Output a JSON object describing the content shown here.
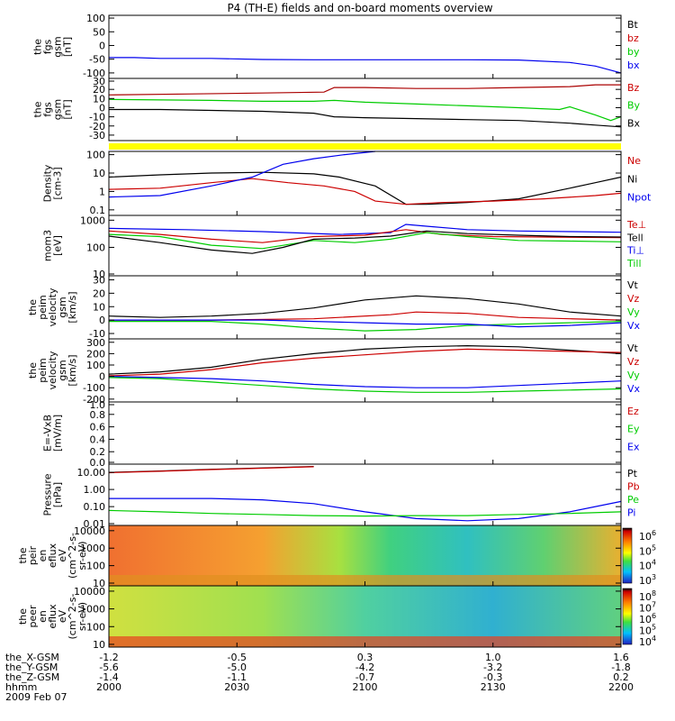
{
  "title": "P4 (TH-E) fields and on-board moments overview",
  "chart_data": {
    "type": "line",
    "title": "P4 (TH-E) fields and on-board moments overview",
    "time_axis": {
      "ticks": [
        "2000",
        "2030",
        "2100",
        "2130",
        "2200"
      ]
    },
    "position_rows": [
      {
        "label": "the_X-GSM",
        "values": [
          "-1.2",
          "-0.5",
          "0.3",
          "1.0",
          "1.6"
        ]
      },
      {
        "label": "the_Y-GSM",
        "values": [
          "-5.6",
          "-5.0",
          "-4.2",
          "-3.2",
          "-1.8"
        ]
      },
      {
        "label": "the_Z-GSM",
        "values": [
          "-1.4",
          "-1.1",
          "-0.7",
          "-0.3",
          "0.2"
        ]
      },
      {
        "label": "hhmm",
        "values": [
          "2000",
          "2030",
          "2100",
          "2130",
          "2200"
        ]
      }
    ],
    "date": "2009 Feb 07",
    "panels": [
      {
        "ylabel": [
          "the",
          "fgs",
          "gsm",
          "[nT]"
        ],
        "yticks": [
          "100",
          "50",
          "0",
          "-50",
          "-100"
        ],
        "ylim": [
          -120,
          110
        ],
        "log": false,
        "legend": [
          {
            "name": "Bt",
            "color": "#000000"
          },
          {
            "name": "bz",
            "color": "#cc0000"
          },
          {
            "name": "by",
            "color": "#00cc00"
          },
          {
            "name": "bx",
            "color": "#0000ee"
          }
        ],
        "series": [
          {
            "name": "bx",
            "color": "#0000ee",
            "x": [
              0,
              5,
              10,
              20,
              30,
              40,
              50,
              60,
              70,
              80,
              90,
              95,
              100
            ],
            "y": [
              -44,
              -44,
              -47,
              -47,
              -51,
              -52,
              -52,
              -52,
              -52,
              -53,
              -62,
              -75,
              -100
            ]
          }
        ]
      },
      {
        "ylabel": [
          "the",
          "fgs",
          "gsm",
          "[nT]"
        ],
        "yticks": [
          "30",
          "20",
          "10",
          "0",
          "-10",
          "-20",
          "-30"
        ],
        "ylim": [
          -36,
          32
        ],
        "log": false,
        "legend": [
          {
            "name": "Bz",
            "color": "#cc0000"
          },
          {
            "name": "By",
            "color": "#00cc00"
          },
          {
            "name": "Bx",
            "color": "#000000"
          }
        ],
        "series": [
          {
            "name": "Bz",
            "color": "#aa0000",
            "x": [
              0,
              15,
              30,
              42,
              44,
              50,
              60,
              70,
              80,
              90,
              95,
              100
            ],
            "y": [
              14,
              15,
              16,
              17,
              22,
              22,
              21,
              21,
              22,
              23,
              25,
              25
            ]
          },
          {
            "name": "By",
            "color": "#00cc00",
            "x": [
              0,
              20,
              30,
              40,
              44,
              50,
              60,
              70,
              80,
              88,
              90,
              95,
              98,
              100
            ],
            "y": [
              9,
              8,
              7,
              7,
              8,
              6,
              4,
              2,
              0,
              -2,
              1,
              -8,
              -14,
              -10
            ]
          },
          {
            "name": "Bx",
            "color": "#000000",
            "x": [
              0,
              10,
              20,
              30,
              40,
              44,
              50,
              60,
              70,
              80,
              90,
              95,
              100
            ],
            "y": [
              -2,
              -2,
              -3,
              -4,
              -6,
              -10,
              -11,
              -12,
              -13,
              -14,
              -17,
              -19,
              -21
            ]
          }
        ]
      },
      {
        "ylabel": [
          "Density",
          "[cm-3]"
        ],
        "yticks": [
          "100",
          "10",
          "1",
          "0.1"
        ],
        "ylim": [
          0.05,
          150
        ],
        "log": true,
        "legend": [
          {
            "name": "Ne",
            "color": "#cc0000"
          },
          {
            "name": "Ni",
            "color": "#000000"
          },
          {
            "name": "Npot",
            "color": "#0000ee"
          }
        ],
        "series": [
          {
            "name": "Ni",
            "color": "#000000",
            "x": [
              0,
              10,
              20,
              30,
              40,
              45,
              52,
              58,
              62,
              70,
              80,
              90,
              95,
              100
            ],
            "y": [
              6,
              8,
              10,
              11,
              9,
              6,
              2,
              0.2,
              0.2,
              0.25,
              0.4,
              1.5,
              3,
              6
            ]
          },
          {
            "name": "Ne",
            "color": "#cc0000",
            "x": [
              0,
              10,
              20,
              28,
              35,
              42,
              48,
              52,
              58,
              65,
              75,
              85,
              95,
              100
            ],
            "y": [
              1.3,
              1.5,
              3,
              5,
              3,
              2,
              1,
              0.3,
              0.2,
              0.25,
              0.3,
              0.4,
              0.6,
              0.8
            ]
          },
          {
            "name": "Npot",
            "color": "#0000ee",
            "x": [
              0,
              10,
              20,
              28,
              34,
              40,
              46,
              52
            ],
            "y": [
              0.5,
              0.6,
              2,
              6,
              30,
              60,
              100,
              150
            ]
          }
        ]
      },
      {
        "ylabel": [
          "mom3",
          "[eV]"
        ],
        "yticks": [
          "1000",
          "100",
          "10"
        ],
        "ylim": [
          9,
          1500
        ],
        "log": true,
        "legend": [
          {
            "name": "Te⊥",
            "color": "#cc0000"
          },
          {
            "name": "Tell",
            "color": "#000000"
          },
          {
            "name": "Ti⊥",
            "color": "#0000ee"
          },
          {
            "name": "Till",
            "color": "#00cc00"
          }
        ],
        "series": [
          {
            "name": "Ti⊥",
            "color": "#0000ee",
            "x": [
              0,
              15,
              30,
              45,
              55,
              58,
              62,
              70,
              80,
              90,
              100
            ],
            "y": [
              500,
              450,
              380,
              300,
              350,
              700,
              600,
              450,
              400,
              380,
              360
            ]
          },
          {
            "name": "Te⊥",
            "color": "#cc0000",
            "x": [
              0,
              10,
              20,
              30,
              40,
              50,
              58,
              65,
              75,
              85,
              100
            ],
            "y": [
              400,
              300,
              200,
              150,
              250,
              280,
              450,
              300,
              250,
              240,
              230
            ]
          },
          {
            "name": "Till",
            "color": "#00cc00",
            "x": [
              0,
              10,
              20,
              30,
              40,
              48,
              55,
              62,
              70,
              80,
              90,
              100
            ],
            "y": [
              300,
              250,
              120,
              90,
              180,
              150,
              200,
              350,
              250,
              180,
              170,
              160
            ]
          },
          {
            "name": "Tell",
            "color": "#000000",
            "x": [
              0,
              10,
              20,
              28,
              34,
              40,
              48,
              55,
              62,
              70,
              80,
              90,
              100
            ],
            "y": [
              260,
              150,
              80,
              60,
              100,
              200,
              220,
              260,
              400,
              320,
              280,
              250,
              240
            ]
          }
        ]
      },
      {
        "ylabel": [
          "the",
          "peim",
          "velocity",
          "gsm",
          "[km/s]"
        ],
        "yticks": [
          "30",
          "20",
          "10",
          "0",
          "-10"
        ],
        "ylim": [
          -14,
          33
        ],
        "log": false,
        "legend": [
          {
            "name": "Vt",
            "color": "#000000"
          },
          {
            "name": "Vz",
            "color": "#cc0000"
          },
          {
            "name": "Vy",
            "color": "#00cc00"
          },
          {
            "name": "Vx",
            "color": "#0000ee"
          }
        ],
        "series": [
          {
            "name": "Vt",
            "color": "#000000",
            "x": [
              0,
              10,
              20,
              30,
              40,
              50,
              60,
              70,
              80,
              90,
              100
            ],
            "y": [
              3,
              2,
              3,
              5,
              9,
              15,
              18,
              16,
              12,
              6,
              3
            ]
          },
          {
            "name": "Vz",
            "color": "#cc0000",
            "x": [
              0,
              20,
              40,
              55,
              60,
              70,
              80,
              90,
              100
            ],
            "y": [
              0,
              0,
              1,
              4,
              6,
              5,
              2,
              1,
              0
            ]
          },
          {
            "name": "Vy",
            "color": "#00cc00",
            "x": [
              0,
              20,
              30,
              40,
              50,
              60,
              70,
              80,
              90,
              100
            ],
            "y": [
              -1,
              -1,
              -3,
              -6,
              -8,
              -7,
              -4,
              -3,
              -2,
              -1
            ]
          },
          {
            "name": "Vx",
            "color": "#0000ee",
            "x": [
              0,
              30,
              50,
              60,
              70,
              80,
              90,
              100
            ],
            "y": [
              0,
              0,
              -2,
              -3,
              -3,
              -5,
              -4,
              -2
            ]
          }
        ]
      },
      {
        "ylabel": [
          "the",
          "peim",
          "velocity",
          "gsm",
          "[km/s]"
        ],
        "yticks": [
          "300",
          "200",
          "100",
          "0",
          "-100",
          "-200"
        ],
        "ylim": [
          -225,
          330
        ],
        "log": false,
        "legend": [
          {
            "name": "Vt",
            "color": "#000000"
          },
          {
            "name": "Vz",
            "color": "#cc0000"
          },
          {
            "name": "Vy",
            "color": "#00cc00"
          },
          {
            "name": "Vx",
            "color": "#0000ee"
          }
        ],
        "series": [
          {
            "name": "Vt",
            "color": "#000000",
            "x": [
              0,
              10,
              20,
              30,
              40,
              50,
              60,
              70,
              80,
              90,
              100
            ],
            "y": [
              20,
              40,
              80,
              150,
              200,
              240,
              260,
              270,
              260,
              230,
              200
            ]
          },
          {
            "name": "Vz",
            "color": "#cc0000",
            "x": [
              0,
              10,
              20,
              30,
              40,
              50,
              60,
              70,
              80,
              90,
              100
            ],
            "y": [
              5,
              20,
              60,
              120,
              160,
              190,
              220,
              240,
              230,
              220,
              210
            ]
          },
          {
            "name": "Vy",
            "color": "#00cc00",
            "x": [
              0,
              10,
              20,
              30,
              40,
              50,
              60,
              70,
              80,
              90,
              100
            ],
            "y": [
              -10,
              -20,
              -50,
              -80,
              -110,
              -130,
              -140,
              -140,
              -130,
              -120,
              -110
            ]
          },
          {
            "name": "Vx",
            "color": "#0000ee",
            "x": [
              0,
              10,
              20,
              30,
              40,
              50,
              60,
              70,
              80,
              90,
              100
            ],
            "y": [
              0,
              -10,
              -20,
              -40,
              -70,
              -90,
              -100,
              -100,
              -80,
              -60,
              -40
            ]
          }
        ]
      },
      {
        "ylabel": [
          "E=-VxB",
          "[mV/m]"
        ],
        "yticks": [
          "1.0",
          "0.8",
          "0.6",
          "0.4",
          "0.2",
          "0.0"
        ],
        "ylim": [
          0,
          1
        ],
        "log": false,
        "legend": [
          {
            "name": "Ez",
            "color": "#cc0000"
          },
          {
            "name": "Ey",
            "color": "#00cc00"
          },
          {
            "name": "Ex",
            "color": "#0000ee"
          }
        ],
        "series": []
      },
      {
        "ylabel": [
          "Pressure",
          "[nPa]"
        ],
        "yticks": [
          "10.00",
          "1.00",
          "0.10",
          "0.01"
        ],
        "ylim": [
          0.008,
          30
        ],
        "log": true,
        "legend": [
          {
            "name": "Pt",
            "color": "#000000"
          },
          {
            "name": "Pb",
            "color": "#cc0000"
          },
          {
            "name": "Pe",
            "color": "#00cc00"
          },
          {
            "name": "Pi",
            "color": "#0000ee"
          }
        ],
        "series": [
          {
            "name": "Pt",
            "color": "#000000",
            "x": [
              0,
              10,
              20,
              30,
              40
            ],
            "y": [
              10,
              12,
              15,
              18,
              22
            ]
          },
          {
            "name": "Pb",
            "color": "#cc0000",
            "x": [
              0,
              10,
              20,
              30,
              40
            ],
            "y": [
              9.5,
              11.5,
              14.5,
              17.5,
              21
            ]
          },
          {
            "name": "Pi",
            "color": "#0000ee",
            "x": [
              0,
              10,
              20,
              30,
              40,
              50,
              60,
              70,
              80,
              90,
              100
            ],
            "y": [
              0.3,
              0.3,
              0.3,
              0.25,
              0.15,
              0.05,
              0.02,
              0.015,
              0.02,
              0.05,
              0.2
            ]
          },
          {
            "name": "Pe",
            "color": "#00cc00",
            "x": [
              0,
              10,
              20,
              30,
              40,
              50,
              60,
              70,
              80,
              90,
              100
            ],
            "y": [
              0.06,
              0.05,
              0.04,
              0.035,
              0.03,
              0.028,
              0.03,
              0.03,
              0.035,
              0.04,
              0.05
            ]
          }
        ]
      },
      {
        "ylabel": [
          "the",
          "peir",
          "en",
          "eflux",
          "eV",
          "(cm^2-s-",
          "sr-eV)"
        ],
        "yticks": [
          "10000",
          "1000",
          "100",
          "10"
        ],
        "ylim": [
          7,
          20000
        ],
        "log": true,
        "colorbar": [
          "10^6",
          "10^5",
          "10^4",
          "10^3"
        ],
        "spectrogram": true
      },
      {
        "ylabel": [
          "the",
          "peer",
          "en",
          "eflux",
          "eV",
          "(cm^2-s-",
          "sr-eV)"
        ],
        "yticks": [
          "10000",
          "1000",
          "100",
          "10"
        ],
        "ylim": [
          7,
          20000
        ],
        "log": true,
        "colorbar": [
          "10^8",
          "10^7",
          "10^6",
          "10^5",
          "10^4"
        ],
        "spectrogram": true
      }
    ]
  }
}
